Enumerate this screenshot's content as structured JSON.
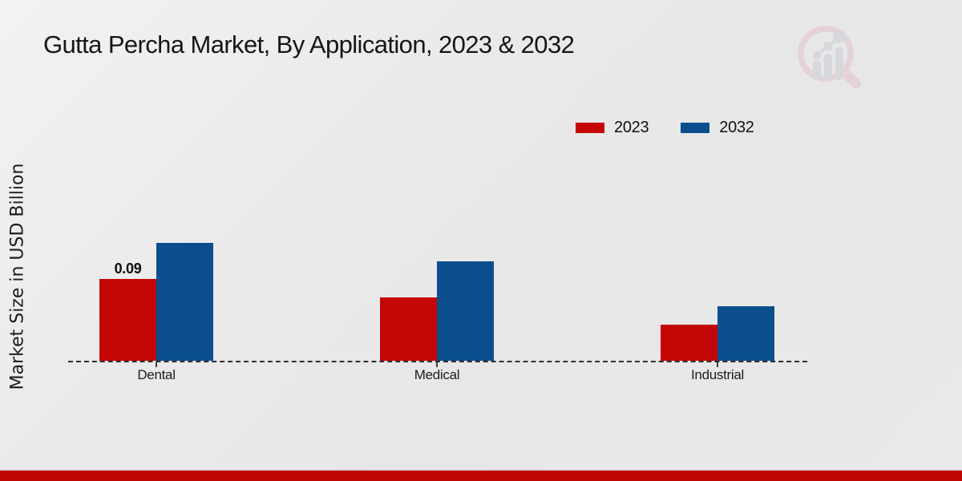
{
  "title": "Gutta Percha Market, By Application, 2023 & 2032",
  "y_axis_label": "Market Size in USD Billion",
  "legend": [
    {
      "label": "2023",
      "color": "#c40606"
    },
    {
      "label": "2032",
      "color": "#0a4e8e"
    }
  ],
  "chart_data": {
    "type": "bar",
    "categories": [
      "Dental",
      "Medical",
      "Industrial"
    ],
    "series": [
      {
        "name": "2023",
        "color": "#c40606",
        "values": [
          0.09,
          0.07,
          0.04
        ]
      },
      {
        "name": "2032",
        "color": "#0a4e8e",
        "values": [
          0.13,
          0.11,
          0.06
        ]
      }
    ],
    "data_labels": [
      {
        "category": "Dental",
        "series": "2023",
        "text": "0.09"
      }
    ],
    "title": "Gutta Percha Market, By Application, 2023 & 2032",
    "xlabel": "",
    "ylabel": "Market Size in USD Billion",
    "ylim": [
      0,
      0.16
    ],
    "grid": false,
    "y_axis_ticks_visible": false,
    "baseline_style": "dashed",
    "legend_position": "top-right"
  },
  "branding": {
    "logo_name": "magnifier-bar-chart-logo",
    "footer_color": "#c00505"
  }
}
